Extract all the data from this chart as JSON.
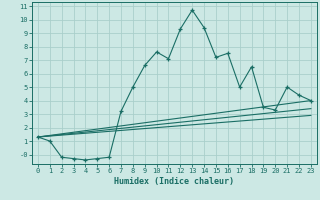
{
  "xlabel": "Humidex (Indice chaleur)",
  "bg_color": "#cce8e4",
  "grid_color": "#aacfcb",
  "line_color": "#1a6e65",
  "xlim": [
    -0.5,
    23.5
  ],
  "ylim": [
    -0.7,
    11.3
  ],
  "yticks": [
    0,
    1,
    2,
    3,
    4,
    5,
    6,
    7,
    8,
    9,
    10,
    11
  ],
  "ytick_labels": [
    "-0",
    "1",
    "2",
    "3",
    "4",
    "5",
    "6",
    "7",
    "8",
    "9",
    "10",
    "11"
  ],
  "xticks": [
    0,
    1,
    2,
    3,
    4,
    5,
    6,
    7,
    8,
    9,
    10,
    11,
    12,
    13,
    14,
    15,
    16,
    17,
    18,
    19,
    20,
    21,
    22,
    23
  ],
  "series": [
    {
      "x": [
        0,
        1,
        2,
        3,
        4,
        5,
        6,
        7,
        8,
        9,
        10,
        11,
        12,
        13,
        14,
        15,
        16,
        17,
        18,
        19,
        20,
        21,
        22,
        23
      ],
      "y": [
        1.3,
        1.0,
        -0.2,
        -0.3,
        -0.4,
        -0.3,
        -0.2,
        3.2,
        5.0,
        6.6,
        7.6,
        7.1,
        9.3,
        10.7,
        9.4,
        7.2,
        7.5,
        5.0,
        6.5,
        3.5,
        3.3,
        5.0,
        4.4,
        4.0
      ]
    },
    {
      "x": [
        0,
        23
      ],
      "y": [
        1.3,
        4.0
      ]
    },
    {
      "x": [
        0,
        23
      ],
      "y": [
        1.3,
        3.4
      ]
    },
    {
      "x": [
        0,
        23
      ],
      "y": [
        1.3,
        2.9
      ]
    }
  ]
}
